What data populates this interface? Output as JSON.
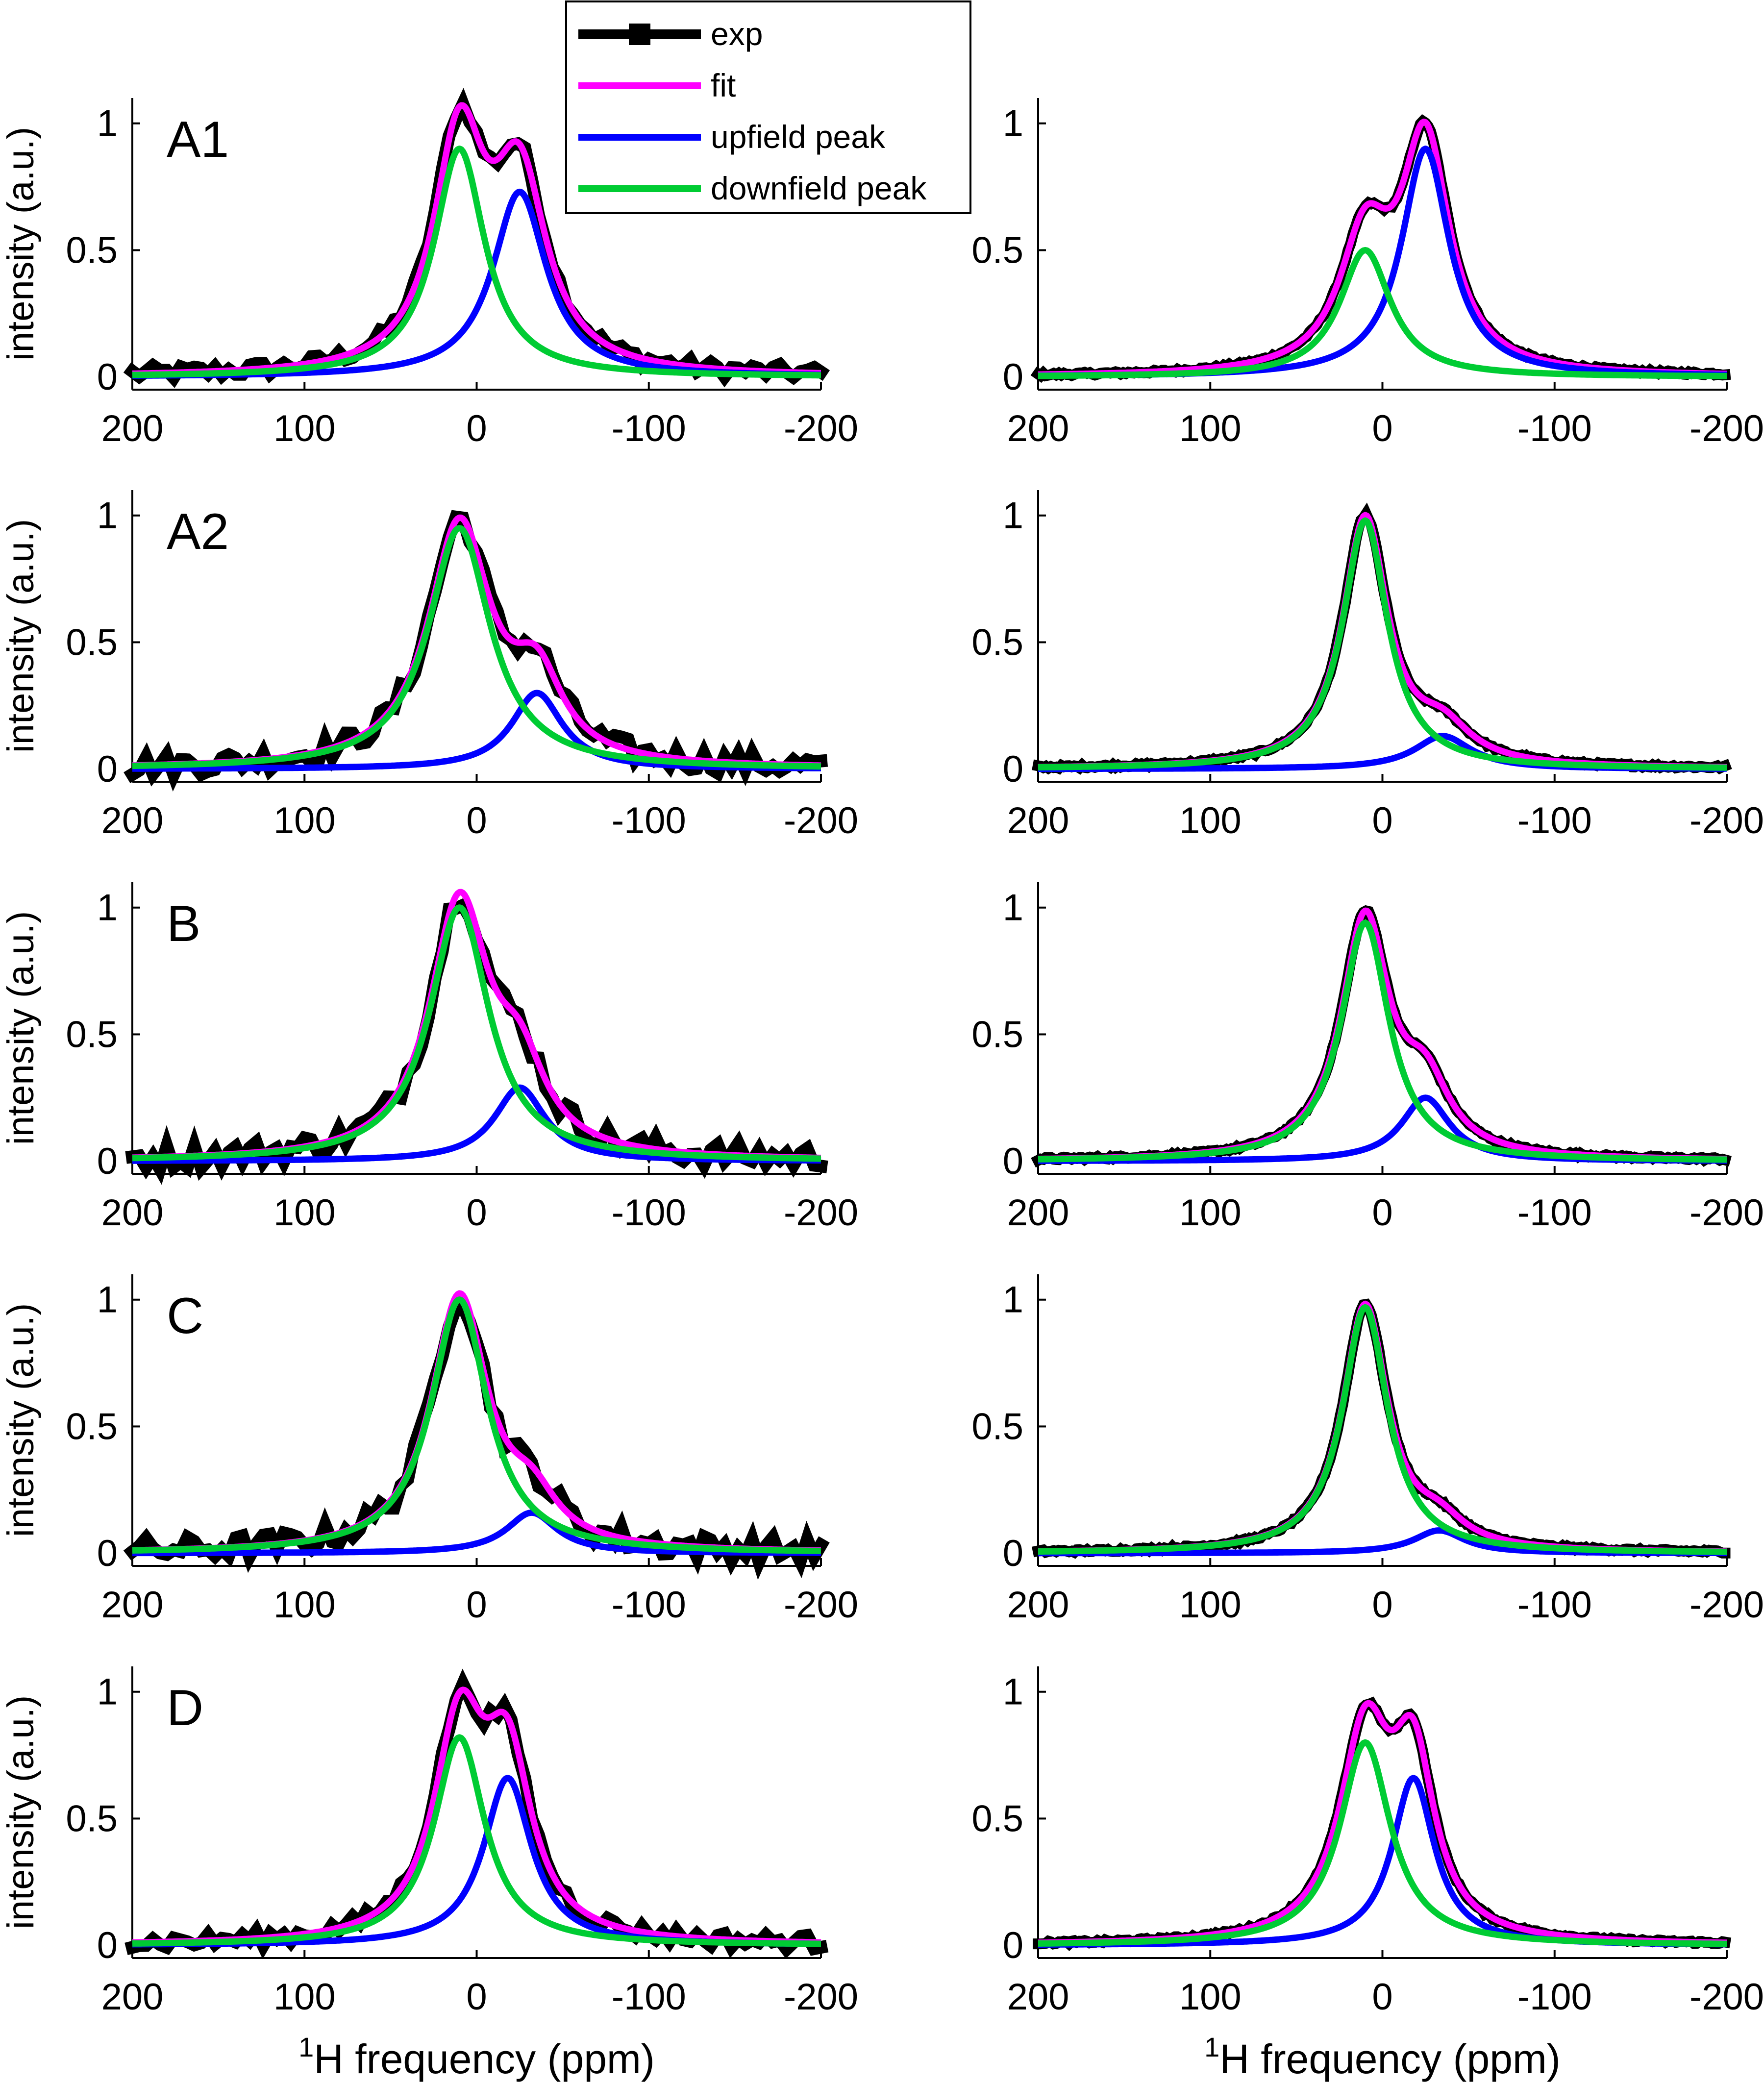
{
  "figure": {
    "legend": {
      "entries": [
        {
          "label": "exp",
          "color": "#000000",
          "marker": "square"
        },
        {
          "label": "fit",
          "color": "#ff00ff"
        },
        {
          "label": "upfield peak",
          "color": "#0000ff"
        },
        {
          "label": "downfield peak",
          "color": "#00cc33"
        }
      ],
      "placement": "top-center"
    },
    "xlabel": {
      "sup": "1",
      "rest": "H frequency (ppm)"
    },
    "ylabel": "intensity (a.u.)"
  },
  "chart_data": [
    {
      "type": "line",
      "panel_label": "A1",
      "row": 1,
      "col": 1,
      "xlim": [
        200,
        -200
      ],
      "ylim": [
        -0.05,
        1.1
      ],
      "xticks": [
        200,
        100,
        0,
        -100,
        -200
      ],
      "yticks": [
        0,
        0.5,
        1
      ],
      "x_reversed": true,
      "series": [
        {
          "name": "upfield peak",
          "center": -25,
          "height": 0.73,
          "width": 19
        },
        {
          "name": "downfield peak",
          "center": 10,
          "height": 0.9,
          "width": 18
        },
        {
          "name": "fit"
        },
        {
          "name": "exp",
          "noise": 0.03
        }
      ]
    },
    {
      "type": "line",
      "panel_label": "",
      "row": 1,
      "col": 2,
      "xlim": [
        200,
        -200
      ],
      "ylim": [
        -0.05,
        1.1
      ],
      "xticks": [
        200,
        100,
        0,
        -100,
        -200
      ],
      "yticks": [
        0,
        0.5,
        1
      ],
      "x_reversed": true,
      "series": [
        {
          "name": "upfield peak",
          "center": -25,
          "height": 0.9,
          "width": 17
        },
        {
          "name": "downfield peak",
          "center": 10,
          "height": 0.5,
          "width": 18
        },
        {
          "name": "fit"
        },
        {
          "name": "exp",
          "noise": 0.006
        }
      ]
    },
    {
      "type": "line",
      "panel_label": "A2",
      "row": 2,
      "col": 1,
      "xlim": [
        200,
        -200
      ],
      "ylim": [
        -0.05,
        1.1
      ],
      "xticks": [
        200,
        100,
        0,
        -100,
        -200
      ],
      "yticks": [
        0,
        0.5,
        1
      ],
      "x_reversed": true,
      "series": [
        {
          "name": "upfield peak",
          "center": -35,
          "height": 0.3,
          "width": 18
        },
        {
          "name": "downfield peak",
          "center": 10,
          "height": 0.95,
          "width": 22
        },
        {
          "name": "fit"
        },
        {
          "name": "exp",
          "noise": 0.045
        }
      ]
    },
    {
      "type": "line",
      "panel_label": "",
      "row": 2,
      "col": 2,
      "xlim": [
        200,
        -200
      ],
      "ylim": [
        -0.05,
        1.1
      ],
      "xticks": [
        200,
        100,
        0,
        -100,
        -200
      ],
      "yticks": [
        0,
        0.5,
        1
      ],
      "x_reversed": true,
      "series": [
        {
          "name": "upfield peak",
          "center": -35,
          "height": 0.13,
          "width": 20
        },
        {
          "name": "downfield peak",
          "center": 10,
          "height": 0.98,
          "width": 16
        },
        {
          "name": "fit"
        },
        {
          "name": "exp",
          "noise": 0.006
        }
      ]
    },
    {
      "type": "line",
      "panel_label": "B",
      "row": 3,
      "col": 1,
      "xlim": [
        200,
        -200
      ],
      "ylim": [
        -0.05,
        1.1
      ],
      "xticks": [
        200,
        100,
        0,
        -100,
        -200
      ],
      "yticks": [
        0,
        0.5,
        1
      ],
      "x_reversed": true,
      "series": [
        {
          "name": "upfield peak",
          "center": -25,
          "height": 0.29,
          "width": 18
        },
        {
          "name": "downfield peak",
          "center": 10,
          "height": 1.0,
          "width": 21
        },
        {
          "name": "fit"
        },
        {
          "name": "exp",
          "noise": 0.05
        }
      ]
    },
    {
      "type": "line",
      "panel_label": "",
      "row": 3,
      "col": 2,
      "xlim": [
        200,
        -200
      ],
      "ylim": [
        -0.05,
        1.1
      ],
      "xticks": [
        200,
        100,
        0,
        -100,
        -200
      ],
      "yticks": [
        0,
        0.5,
        1
      ],
      "x_reversed": true,
      "series": [
        {
          "name": "upfield peak",
          "center": -25,
          "height": 0.25,
          "width": 17
        },
        {
          "name": "downfield peak",
          "center": 10,
          "height": 0.94,
          "width": 17
        },
        {
          "name": "fit"
        },
        {
          "name": "exp",
          "noise": 0.006
        }
      ]
    },
    {
      "type": "line",
      "panel_label": "C",
      "row": 4,
      "col": 1,
      "xlim": [
        200,
        -200
      ],
      "ylim": [
        -0.05,
        1.1
      ],
      "xticks": [
        200,
        100,
        0,
        -100,
        -200
      ],
      "yticks": [
        0,
        0.5,
        1
      ],
      "x_reversed": true,
      "series": [
        {
          "name": "upfield peak",
          "center": -32,
          "height": 0.16,
          "width": 18
        },
        {
          "name": "downfield peak",
          "center": 10,
          "height": 1.0,
          "width": 20
        },
        {
          "name": "fit"
        },
        {
          "name": "exp",
          "noise": 0.05
        }
      ]
    },
    {
      "type": "line",
      "panel_label": "",
      "row": 4,
      "col": 2,
      "xlim": [
        200,
        -200
      ],
      "ylim": [
        -0.05,
        1.1
      ],
      "xticks": [
        200,
        100,
        0,
        -100,
        -200
      ],
      "yticks": [
        0,
        0.5,
        1
      ],
      "x_reversed": true,
      "series": [
        {
          "name": "upfield peak",
          "center": -33,
          "height": 0.09,
          "width": 18
        },
        {
          "name": "downfield peak",
          "center": 10,
          "height": 0.97,
          "width": 16
        },
        {
          "name": "fit"
        },
        {
          "name": "exp",
          "noise": 0.006
        }
      ]
    },
    {
      "type": "line",
      "panel_label": "D",
      "row": 5,
      "col": 1,
      "xlim": [
        200,
        -200
      ],
      "ylim": [
        -0.05,
        1.1
      ],
      "xticks": [
        200,
        100,
        0,
        -100,
        -200
      ],
      "yticks": [
        0,
        0.5,
        1
      ],
      "x_reversed": true,
      "series": [
        {
          "name": "upfield peak",
          "center": -18,
          "height": 0.66,
          "width": 17
        },
        {
          "name": "downfield peak",
          "center": 10,
          "height": 0.82,
          "width": 18
        },
        {
          "name": "fit"
        },
        {
          "name": "exp",
          "noise": 0.03
        }
      ]
    },
    {
      "type": "line",
      "panel_label": "",
      "row": 5,
      "col": 2,
      "xlim": [
        200,
        -200
      ],
      "ylim": [
        -0.05,
        1.1
      ],
      "xticks": [
        200,
        100,
        0,
        -100,
        -200
      ],
      "yticks": [
        0,
        0.5,
        1
      ],
      "x_reversed": true,
      "series": [
        {
          "name": "upfield peak",
          "center": -18,
          "height": 0.66,
          "width": 15
        },
        {
          "name": "downfield peak",
          "center": 10,
          "height": 0.8,
          "width": 18
        },
        {
          "name": "fit"
        },
        {
          "name": "exp",
          "noise": 0.006
        }
      ]
    }
  ]
}
